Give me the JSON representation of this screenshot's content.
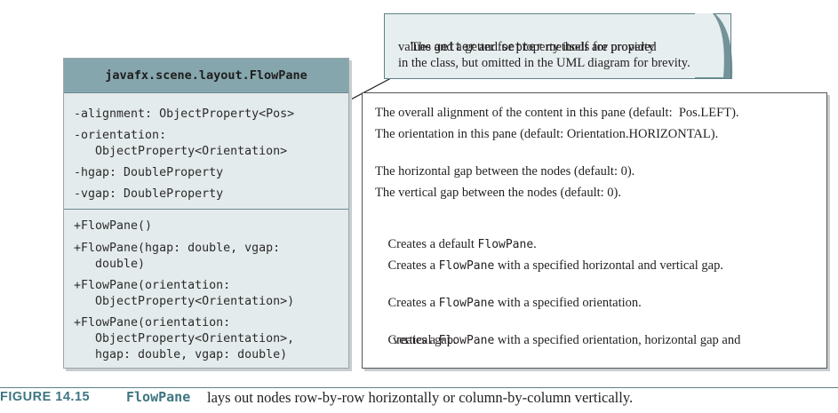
{
  "note": {
    "line1_pre": "The ",
    "getter": "getter",
    "line1_mid": " and ",
    "setter": "setter",
    "line1_post": " methods for property",
    "line2": "values and a getter for property itself are provided",
    "line3": "in the class, but omitted in the UML diagram for brevity."
  },
  "uml": {
    "class_name": "javafx.scene.layout.FlowPane",
    "attributes": [
      "-alignment: ObjectProperty<Pos>",
      "-orientation:",
      "   ObjectProperty<Orientation>",
      "-hgap: DoubleProperty",
      "-vgap: DoubleProperty"
    ],
    "methods": [
      "+FlowPane()",
      "+FlowPane(hgap: double, vgap:",
      "   double)",
      "+FlowPane(orientation:",
      "   ObjectProperty<Orientation>)",
      "+FlowPane(orientation:",
      "   ObjectProperty<Orientation>,",
      "   hgap: double, vgap: double)"
    ]
  },
  "descriptions": {
    "d1": "The overall alignment of the content in this pane (default:  Pos.LEFT).",
    "d2": "The orientation in this pane (default: Orientation.HORIZONTAL).",
    "d3": "The horizontal gap between the nodes (default: 0).",
    "d4": "The vertical gap between the nodes (default: 0).",
    "d5_pre": "Creates a default ",
    "d5_code": "FlowPane",
    "d5_post": ".",
    "d6_pre": "Creates a ",
    "d6_code": "FlowPane",
    "d6_post": " with a specified horizontal and vertical gap.",
    "d7_pre": "Creates a ",
    "d7_code": "FlowPane",
    "d7_post": " with a specified orientation.",
    "d8_pre": "Creates a ",
    "d8_code": "FlowPane",
    "d8_post": " with a specified orientation, horizontal gap and",
    "d8_cont": "vertical gap."
  },
  "caption": {
    "label": "FIGURE 14.15",
    "class_name": "FlowPane",
    "text": "lays out nodes row-by-row horizontally or column-by-column vertically."
  },
  "colors": {
    "header_fill": "#86a6ad",
    "body_fill": "#e4ebec",
    "accent": "#3e7681"
  }
}
